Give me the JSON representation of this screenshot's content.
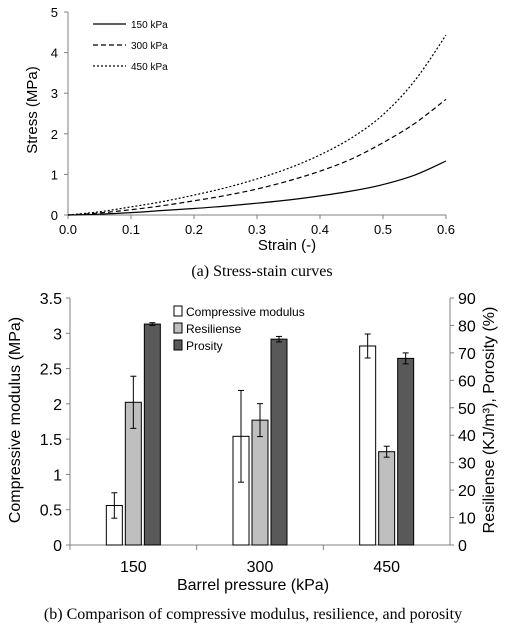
{
  "chart_data": [
    {
      "type": "line",
      "caption": "(a) Stress-stain curves",
      "xlabel": "Strain (-)",
      "ylabel": "Stress (MPa)",
      "xlim": [
        0,
        0.6
      ],
      "ylim": [
        0,
        5
      ],
      "xticks": [
        "0.0",
        "0.1",
        "0.2",
        "0.3",
        "0.4",
        "0.5",
        "0.6"
      ],
      "yticks": [
        "0",
        "1",
        "2",
        "3",
        "4",
        "5"
      ],
      "grid": false,
      "legend_position": "top-left",
      "x": [
        0,
        0.05,
        0.1,
        0.15,
        0.2,
        0.25,
        0.3,
        0.35,
        0.4,
        0.45,
        0.5,
        0.55,
        0.6
      ],
      "series": [
        {
          "name": "150 kPa",
          "style": "solid",
          "values": [
            0,
            0.02,
            0.06,
            0.11,
            0.16,
            0.22,
            0.29,
            0.37,
            0.47,
            0.59,
            0.75,
            0.98,
            1.33
          ]
        },
        {
          "name": "300 kPa",
          "style": "dashed",
          "values": [
            0,
            0.05,
            0.13,
            0.23,
            0.35,
            0.48,
            0.64,
            0.84,
            1.08,
            1.38,
            1.78,
            2.25,
            2.85
          ]
        },
        {
          "name": "450 kPa",
          "style": "dotted",
          "values": [
            0,
            0.08,
            0.2,
            0.33,
            0.49,
            0.67,
            0.89,
            1.15,
            1.48,
            1.9,
            2.47,
            3.3,
            4.43
          ]
        }
      ]
    },
    {
      "type": "bar",
      "caption": "(b) Comparison of compressive modulus, resilience, and porosity",
      "xlabel": "Barrel pressure (kPa)",
      "ylabel": "Compressive modulus (MPa)",
      "y2label": "Resiliense (KJ/m³), Porosity (%)",
      "ylim": [
        0,
        3.5
      ],
      "y2lim": [
        0,
        90
      ],
      "yticks": [
        "0",
        "0.5",
        "1",
        "1.5",
        "2",
        "2.5",
        "3",
        "3.5"
      ],
      "y2ticks": [
        "0",
        "10",
        "20",
        "30",
        "40",
        "50",
        "60",
        "70",
        "80",
        "90"
      ],
      "categories": [
        "150",
        "300",
        "450"
      ],
      "grid": false,
      "legend_position": "top-center",
      "series": [
        {
          "name": "Compressive modulus",
          "axis": "left",
          "color": "#ffffff",
          "values": [
            0.56,
            1.54,
            2.82
          ],
          "errors": [
            0.18,
            0.65,
            0.17
          ]
        },
        {
          "name": "Resiliense",
          "axis": "right",
          "color": "#bfbfbf",
          "values": [
            52,
            45.5,
            34
          ],
          "errors": [
            9.5,
            6,
            2
          ]
        },
        {
          "name": "Prosity",
          "axis": "right",
          "color": "#595959",
          "values": [
            80.5,
            75,
            68
          ],
          "errors": [
            0.5,
            1,
            2
          ]
        }
      ]
    }
  ]
}
